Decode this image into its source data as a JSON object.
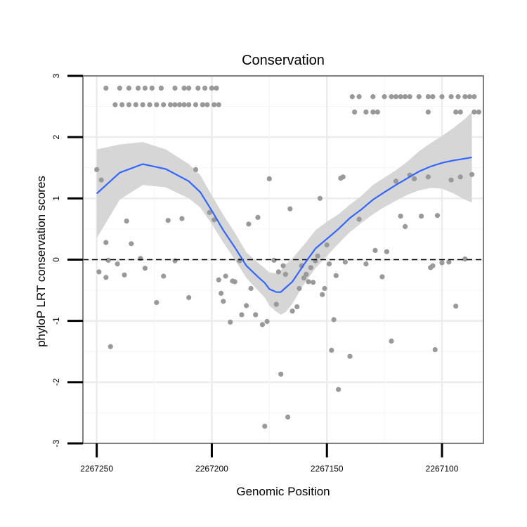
{
  "chart_data": {
    "type": "scatter",
    "title": "Conservation",
    "xlabel": "Genomic Position",
    "ylabel": "phyloP LRT conservation scores",
    "x_reversed": true,
    "xlim": [
      2267256,
      2267082
    ],
    "ylim": [
      -3,
      3
    ],
    "x_ticks": [
      2267250,
      2267200,
      2267150,
      2267100
    ],
    "x_tick_labels": [
      "2267250",
      "2267200",
      "2267150",
      "2267100"
    ],
    "y_ticks": [
      -3,
      -2,
      -1,
      0,
      1,
      2,
      3
    ],
    "y_tick_labels": [
      "-3",
      "-2",
      "-1",
      "0",
      "1",
      "2",
      "3"
    ],
    "reference_line": {
      "y": 0,
      "style": "dashed"
    },
    "colors": {
      "points": "#999999",
      "smooth_line": "#3366ff",
      "ribbon": "#d6d6d6",
      "grid": "#f0f0f0",
      "frame": "#7f7f7f"
    },
    "points": [
      [
        2267246,
        2.8
      ],
      [
        2267240,
        2.8
      ],
      [
        2267236,
        2.8
      ],
      [
        2267232,
        2.8
      ],
      [
        2267229,
        2.8
      ],
      [
        2267226,
        2.8
      ],
      [
        2267222,
        2.8
      ],
      [
        2267216,
        2.8
      ],
      [
        2267212,
        2.8
      ],
      [
        2267210,
        2.8
      ],
      [
        2267206,
        2.8
      ],
      [
        2267203,
        2.8
      ],
      [
        2267200,
        2.8
      ],
      [
        2267198,
        2.8
      ],
      [
        2267242,
        2.53
      ],
      [
        2267239,
        2.53
      ],
      [
        2267236,
        2.53
      ],
      [
        2267233,
        2.53
      ],
      [
        2267230,
        2.53
      ],
      [
        2267227,
        2.53
      ],
      [
        2267224,
        2.53
      ],
      [
        2267221,
        2.53
      ],
      [
        2267218,
        2.53
      ],
      [
        2267216,
        2.53
      ],
      [
        2267214,
        2.53
      ],
      [
        2267212,
        2.53
      ],
      [
        2267210,
        2.53
      ],
      [
        2267207,
        2.53
      ],
      [
        2267204,
        2.53
      ],
      [
        2267202,
        2.53
      ],
      [
        2267199,
        2.53
      ],
      [
        2267197,
        2.53
      ],
      [
        2267139,
        2.66
      ],
      [
        2267136,
        2.66
      ],
      [
        2267130,
        2.66
      ],
      [
        2267125,
        2.66
      ],
      [
        2267122,
        2.66
      ],
      [
        2267120,
        2.66
      ],
      [
        2267118,
        2.66
      ],
      [
        2267116,
        2.66
      ],
      [
        2267114,
        2.66
      ],
      [
        2267110,
        2.66
      ],
      [
        2267106,
        2.66
      ],
      [
        2267104,
        2.66
      ],
      [
        2267100,
        2.66
      ],
      [
        2267096,
        2.66
      ],
      [
        2267093,
        2.66
      ],
      [
        2267090,
        2.66
      ],
      [
        2267088,
        2.66
      ],
      [
        2267086,
        2.66
      ],
      [
        2267138,
        2.41
      ],
      [
        2267133,
        2.41
      ],
      [
        2267130,
        2.41
      ],
      [
        2267128,
        2.41
      ],
      [
        2267106,
        2.41
      ],
      [
        2267094,
        2.41
      ],
      [
        2267092,
        2.41
      ],
      [
        2267086,
        2.41
      ],
      [
        2267084,
        2.41
      ],
      [
        2267250,
        1.47
      ],
      [
        2267248,
        1.3
      ],
      [
        2267246,
        0.28
      ],
      [
        2267249,
        -0.2
      ],
      [
        2267246,
        -0.29
      ],
      [
        2267245,
        -0.01
      ],
      [
        2267244,
        -1.42
      ],
      [
        2267241,
        -0.07
      ],
      [
        2267238,
        -0.25
      ],
      [
        2267237,
        0.63
      ],
      [
        2267235,
        0.26
      ],
      [
        2267231,
        0.02
      ],
      [
        2267229,
        -0.14
      ],
      [
        2267224,
        -0.7
      ],
      [
        2267221,
        -0.27
      ],
      [
        2267219,
        0.64
      ],
      [
        2267216,
        -0.02
      ],
      [
        2267213,
        0.67
      ],
      [
        2267210,
        -0.62
      ],
      [
        2267207,
        1.47
      ],
      [
        2267201,
        0.77
      ],
      [
        2267199,
        0.65
      ],
      [
        2267197,
        -0.33
      ],
      [
        2267196,
        -0.55
      ],
      [
        2267195,
        -0.68
      ],
      [
        2267194,
        -0.27
      ],
      [
        2267192,
        -1.02
      ],
      [
        2267191,
        -0.35
      ],
      [
        2267190,
        -0.36
      ],
      [
        2267188,
        -0.02
      ],
      [
        2267187,
        -0.9
      ],
      [
        2267185,
        -0.75
      ],
      [
        2267184,
        0.58
      ],
      [
        2267183,
        -0.47
      ],
      [
        2267181,
        -0.9
      ],
      [
        2267180,
        0.69
      ],
      [
        2267178,
        -1.06
      ],
      [
        2267177,
        -2.72
      ],
      [
        2267176,
        -1.01
      ],
      [
        2267175,
        1.32
      ],
      [
        2267173,
        -0.01
      ],
      [
        2267172,
        -0.73
      ],
      [
        2267171,
        -0.2
      ],
      [
        2267170,
        -1.87
      ],
      [
        2267169,
        -0.1
      ],
      [
        2267168,
        -0.24
      ],
      [
        2267167,
        -2.57
      ],
      [
        2267166,
        0.83
      ],
      [
        2267165,
        -0.84
      ],
      [
        2267163,
        -0.77
      ],
      [
        2267162,
        -0.47
      ],
      [
        2267161,
        -0.1
      ],
      [
        2267160,
        -0.3
      ],
      [
        2267159,
        -0.24
      ],
      [
        2267158,
        -0.36
      ],
      [
        2267157,
        -0.13
      ],
      [
        2267156,
        -0.37
      ],
      [
        2267155,
        -0.02
      ],
      [
        2267154,
        0.06
      ],
      [
        2267153,
        1.0
      ],
      [
        2267152,
        -0.57
      ],
      [
        2267151,
        -0.47
      ],
      [
        2267150,
        0.24
      ],
      [
        2267149,
        -0.07
      ],
      [
        2267148,
        -1.48
      ],
      [
        2267147,
        -0.98
      ],
      [
        2267146,
        -0.26
      ],
      [
        2267145,
        -2.12
      ],
      [
        2267144,
        1.33
      ],
      [
        2267143,
        1.35
      ],
      [
        2267142,
        -0.04
      ],
      [
        2267140,
        -1.58
      ],
      [
        2267136,
        0.66
      ],
      [
        2267133,
        -0.07
      ],
      [
        2267129,
        0.15
      ],
      [
        2267126,
        -0.28
      ],
      [
        2267124,
        0.13
      ],
      [
        2267122,
        -1.33
      ],
      [
        2267120,
        1.28
      ],
      [
        2267118,
        0.71
      ],
      [
        2267116,
        0.54
      ],
      [
        2267114,
        1.38
      ],
      [
        2267112,
        1.32
      ],
      [
        2267109,
        0.71
      ],
      [
        2267106,
        1.35
      ],
      [
        2267105,
        -0.13
      ],
      [
        2267104,
        -0.1
      ],
      [
        2267103,
        -1.47
      ],
      [
        2267102,
        0.72
      ],
      [
        2267100,
        -0.05
      ],
      [
        2267097,
        -0.04
      ],
      [
        2267096,
        1.3
      ],
      [
        2267094,
        -0.76
      ],
      [
        2267092,
        1.35
      ],
      [
        2267090,
        0.01
      ],
      [
        2267087,
        1.39
      ]
    ],
    "smooth_fit": {
      "x": [
        2267250,
        2267240,
        2267230,
        2267220,
        2267210,
        2267205,
        2267200,
        2267195,
        2267190,
        2267185,
        2267180,
        2267177,
        2267175,
        2267172,
        2267170,
        2267168,
        2267165,
        2267160,
        2267155,
        2267150,
        2267145,
        2267140,
        2267135,
        2267130,
        2267125,
        2267120,
        2267115,
        2267110,
        2267105,
        2267100,
        2267095,
        2267090,
        2267087
      ],
      "y": [
        1.08,
        1.42,
        1.56,
        1.48,
        1.28,
        1.1,
        0.8,
        0.48,
        0.2,
        -0.1,
        -0.28,
        -0.38,
        -0.48,
        -0.53,
        -0.53,
        -0.46,
        -0.36,
        -0.08,
        0.18,
        0.34,
        0.5,
        0.68,
        0.82,
        0.98,
        1.1,
        1.22,
        1.33,
        1.44,
        1.52,
        1.58,
        1.62,
        1.65,
        1.67
      ],
      "lower": [
        0.35,
        0.98,
        1.22,
        1.18,
        1.0,
        0.85,
        0.58,
        0.28,
        0.0,
        -0.3,
        -0.5,
        -0.62,
        -0.75,
        -0.85,
        -0.9,
        -0.86,
        -0.72,
        -0.4,
        -0.14,
        0.06,
        0.26,
        0.45,
        0.6,
        0.74,
        0.86,
        0.96,
        1.06,
        1.13,
        1.17,
        1.16,
        1.08,
        0.98,
        0.93
      ],
      "upper": [
        1.8,
        1.88,
        1.92,
        1.8,
        1.56,
        1.38,
        1.05,
        0.73,
        0.44,
        0.12,
        -0.05,
        -0.14,
        -0.21,
        -0.22,
        -0.18,
        -0.08,
        0.02,
        0.24,
        0.48,
        0.62,
        0.74,
        0.9,
        1.04,
        1.22,
        1.34,
        1.46,
        1.6,
        1.77,
        1.9,
        2.02,
        2.15,
        2.3,
        2.41
      ]
    }
  }
}
